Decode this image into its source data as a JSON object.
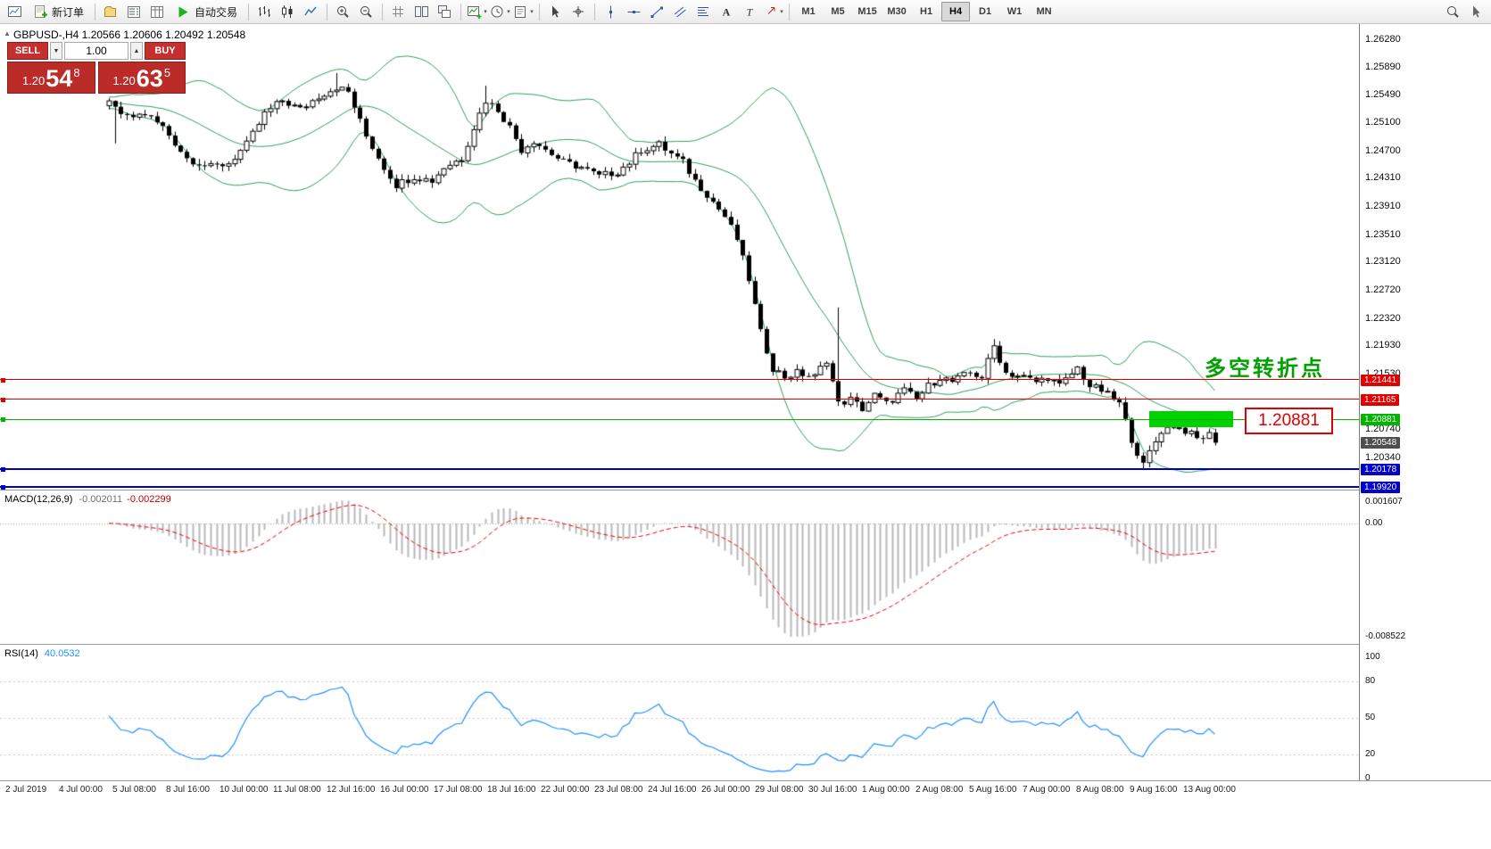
{
  "toolbar": {
    "dropdown_glyph": "▾",
    "items": [
      {
        "k": "icon",
        "name": "chart-window-icon",
        "icon": "chartwin"
      },
      {
        "k": "btn",
        "name": "new-order-button",
        "icon": "neworder",
        "label": "新订单"
      },
      {
        "k": "sep"
      },
      {
        "k": "icon",
        "name": "profiles-icon",
        "icon": "profiles"
      },
      {
        "k": "icon",
        "name": "market-watch-icon",
        "icon": "marketwatch"
      },
      {
        "k": "icon",
        "name": "data-window-icon",
        "icon": "datawindow"
      },
      {
        "k": "btn",
        "name": "autotrading-button",
        "icon": "play",
        "label": "自动交易"
      },
      {
        "k": "sep"
      },
      {
        "k": "icon",
        "name": "bar-chart-icon",
        "icon": "barchart"
      },
      {
        "k": "icon",
        "name": "candlestick-chart-icon",
        "icon": "candles"
      },
      {
        "k": "icon",
        "name": "line-chart-icon",
        "icon": "linechart"
      },
      {
        "k": "sep"
      },
      {
        "k": "icon",
        "name": "zoom-in-icon",
        "icon": "zoomin"
      },
      {
        "k": "icon",
        "name": "zoom-out-icon",
        "icon": "zoomout"
      },
      {
        "k": "sep"
      },
      {
        "k": "icon",
        "name": "grid-icon",
        "icon": "grid"
      },
      {
        "k": "icon",
        "name": "tile-windows-icon",
        "icon": "tile"
      },
      {
        "k": "icon",
        "name": "cascade-windows-icon",
        "icon": "cascade"
      },
      {
        "k": "sep"
      },
      {
        "k": "icon",
        "name": "indicators-icon",
        "icon": "inddrop",
        "drop": true
      },
      {
        "k": "icon",
        "name": "periods-icon",
        "icon": "perioddrop",
        "drop": true
      },
      {
        "k": "icon",
        "name": "templates-icon",
        "icon": "templdrop",
        "drop": true
      },
      {
        "k": "sep"
      },
      {
        "k": "icon",
        "name": "cursor-icon",
        "icon": "cursor"
      },
      {
        "k": "icon",
        "name": "crosshair-icon",
        "icon": "crosshair"
      },
      {
        "k": "sep"
      },
      {
        "k": "icon",
        "name": "vertical-line-icon",
        "icon": "vline"
      },
      {
        "k": "icon",
        "name": "horizontal-line-icon",
        "icon": "hline"
      },
      {
        "k": "icon",
        "name": "trendline-icon",
        "icon": "trend"
      },
      {
        "k": "icon",
        "name": "equidistant-channel-icon",
        "icon": "channel"
      },
      {
        "k": "icon",
        "name": "fibonacci-icon",
        "icon": "fibo"
      },
      {
        "k": "icon",
        "name": "text-icon",
        "icon": "text"
      },
      {
        "k": "icon",
        "name": "text-label-icon",
        "icon": "label"
      },
      {
        "k": "icon",
        "name": "arrows-icon",
        "icon": "arrows",
        "drop": true
      },
      {
        "k": "sep"
      },
      {
        "k": "tf"
      },
      {
        "k": "spacer"
      },
      {
        "k": "icon",
        "name": "search-icon",
        "icon": "search"
      },
      {
        "k": "icon",
        "name": "pointer-icon",
        "icon": "pointer"
      }
    ],
    "timeframes": [
      "M1",
      "M5",
      "M15",
      "M30",
      "H1",
      "H4",
      "D1",
      "W1",
      "MN"
    ],
    "active_timeframe": "H4"
  },
  "chart": {
    "collapse_icon": "▲",
    "symbol_line": "GBPUSD-,H4 1.20566 1.20606 1.20492 1.20548",
    "one_click": {
      "sell_label": "SELL",
      "buy_label": "BUY",
      "lot": "1.00",
      "spin_down_glyph": "▼",
      "spin_up_glyph": "▲",
      "bid": {
        "prefix": "1.20",
        "big": "54",
        "sup": "8"
      },
      "ask": {
        "prefix": "1.20",
        "big": "63",
        "sup": "5"
      }
    },
    "annotations": {
      "turning_point": "多空转折点",
      "level_box": "1.20881"
    }
  },
  "chart_data": {
    "type": "candlestick",
    "symbol": "GBPUSD-",
    "timeframe": "H4",
    "bars": 186,
    "y_range": [
      1.1988,
      1.265
    ],
    "y_axis_labels": [
      "1.26280",
      "1.25890",
      "1.25490",
      "1.25100",
      "1.24700",
      "1.24310",
      "1.23910",
      "1.23510",
      "1.23120",
      "1.22720",
      "1.22320",
      "1.21930",
      "1.21530",
      "1.20740",
      "1.20340"
    ],
    "close_waypoints": [
      [
        0,
        1.2535
      ],
      [
        3,
        1.2516
      ],
      [
        6,
        1.2522
      ],
      [
        9,
        1.2503
      ],
      [
        13,
        1.2459
      ],
      [
        17,
        1.2446
      ],
      [
        20,
        1.2452
      ],
      [
        23,
        1.2478
      ],
      [
        26,
        1.2522
      ],
      [
        29,
        1.2541
      ],
      [
        32,
        1.2528
      ],
      [
        35,
        1.2547
      ],
      [
        38,
        1.256
      ],
      [
        40,
        1.2553
      ],
      [
        43,
        1.249
      ],
      [
        46,
        1.2446
      ],
      [
        48,
        1.2421
      ],
      [
        51,
        1.2433
      ],
      [
        54,
        1.2427
      ],
      [
        56,
        1.2446
      ],
      [
        59,
        1.2459
      ],
      [
        61,
        1.2503
      ],
      [
        63,
        1.2541
      ],
      [
        65,
        1.2528
      ],
      [
        67,
        1.2503
      ],
      [
        69,
        1.2471
      ],
      [
        71,
        1.2484
      ],
      [
        74,
        1.2465
      ],
      [
        76,
        1.2453
      ],
      [
        79,
        1.2446
      ],
      [
        82,
        1.2433
      ],
      [
        85,
        1.244
      ],
      [
        87,
        1.2453
      ],
      [
        89,
        1.2471
      ],
      [
        92,
        1.2478
      ],
      [
        94,
        1.2465
      ],
      [
        96,
        1.2453
      ],
      [
        98,
        1.2427
      ],
      [
        100,
        1.2408
      ],
      [
        103,
        1.2376
      ],
      [
        105,
        1.2344
      ],
      [
        107,
        1.2287
      ],
      [
        109,
        1.2211
      ],
      [
        111,
        1.2161
      ],
      [
        113,
        1.2148
      ],
      [
        115,
        1.2154
      ],
      [
        118,
        1.2148
      ],
      [
        120,
        1.2173
      ],
      [
        122,
        1.211
      ],
      [
        124,
        1.2116
      ],
      [
        126,
        1.2103
      ],
      [
        128,
        1.2122
      ],
      [
        130,
        1.211
      ],
      [
        133,
        1.2129
      ],
      [
        135,
        1.2116
      ],
      [
        137,
        1.2135
      ],
      [
        139,
        1.2148
      ],
      [
        141,
        1.2141
      ],
      [
        144,
        1.2154
      ],
      [
        146,
        1.2148
      ],
      [
        148,
        1.2192
      ],
      [
        150,
        1.2154
      ],
      [
        153,
        1.2148
      ],
      [
        155,
        1.2141
      ],
      [
        157,
        1.2148
      ],
      [
        159,
        1.2135
      ],
      [
        162,
        1.2161
      ],
      [
        164,
        1.2135
      ],
      [
        166,
        1.2129
      ],
      [
        169,
        1.211
      ],
      [
        171,
        1.206
      ],
      [
        173,
        1.2022
      ],
      [
        174,
        1.2041
      ],
      [
        176,
        1.2072
      ],
      [
        178,
        1.2079
      ],
      [
        180,
        1.2072
      ],
      [
        182,
        1.206
      ],
      [
        184,
        1.2066
      ],
      [
        185,
        1.20548
      ]
    ],
    "wick_spikes": [
      {
        "bar": 1,
        "low": 1.248
      },
      {
        "bar": 38,
        "high": 1.258
      },
      {
        "bar": 63,
        "high": 1.2562
      },
      {
        "bar": 122,
        "high": 1.2247,
        "low": 1.2107
      },
      {
        "bar": 148,
        "high": 1.2202
      },
      {
        "bar": 173,
        "low": 1.2016
      }
    ],
    "last_close": 1.20548,
    "levels": [
      {
        "price": 1.21441,
        "label": "1.21441",
        "color": "#e00000",
        "width": 1
      },
      {
        "price": 1.21165,
        "label": "1.21165",
        "color": "#e00000",
        "width": 1
      },
      {
        "price": 1.20881,
        "label": "1.20881",
        "color": "#00b400",
        "width": 1
      },
      {
        "price": 1.20178,
        "label": "1.20178",
        "color": "#0000cc",
        "width": 2
      },
      {
        "price": 1.1992,
        "label": "1.19920",
        "color": "#0000cc",
        "width": 2
      }
    ],
    "current_price": {
      "price": 1.20548,
      "label": "1.20548",
      "badge_color": "#4f4f4f"
    },
    "highlight_rect": {
      "bar_start": 174,
      "bar_end": 188,
      "price_top": 1.21,
      "price_bottom": 1.2077,
      "color": "#00d200"
    },
    "indicators": {
      "bollinger": {
        "period": 20,
        "deviation": 2,
        "color": "#2e9e5b"
      },
      "macd": {
        "fast": 12,
        "slow": 26,
        "signal": 9
      },
      "rsi": {
        "period": 14
      }
    },
    "time_labels": [
      "2 Jul 2019",
      "4 Jul 00:00",
      "5 Jul 08:00",
      "8 Jul 16:00",
      "10 Jul 00:00",
      "11 Jul 08:00",
      "12 Jul 16:00",
      "16 Jul 00:00",
      "17 Jul 08:00",
      "18 Jul 16:00",
      "22 Jul 00:00",
      "23 Jul 08:00",
      "24 Jul 16:00",
      "26 Jul 00:00",
      "29 Jul 08:00",
      "30 Jul 16:00",
      "1 Aug 00:00",
      "2 Aug 08:00",
      "5 Aug 16:00",
      "7 Aug 00:00",
      "8 Aug 08:00",
      "9 Aug 16:00",
      "13 Aug 00:00"
    ]
  },
  "macd_panel": {
    "name": "MACD(12,26,9)",
    "value1": "-0.002011",
    "value2": "-0.002299",
    "axis_labels": [
      "0.001607",
      "0.00",
      "-0.008522"
    ]
  },
  "rsi_panel": {
    "name": "RSI(14)",
    "value": "40.0532",
    "axis_labels": [
      "100",
      "80",
      "50",
      "20",
      "0"
    ],
    "levels": [
      80,
      50,
      20
    ]
  }
}
